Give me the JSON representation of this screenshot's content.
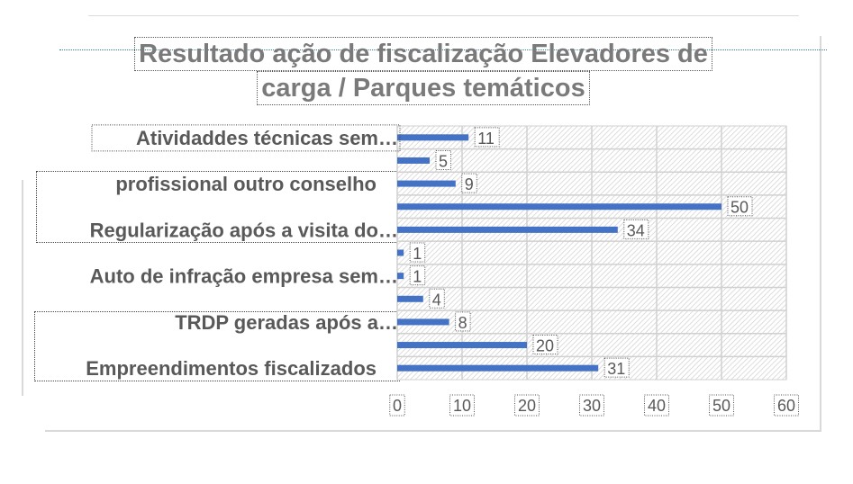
{
  "chart_data": {
    "type": "bar",
    "orientation": "horizontal",
    "title_lines": [
      "Resultado ação de fiscalização Elevadores de",
      "carga / Parques temáticos"
    ],
    "categories": [
      "Atividaddes técnicas sem…",
      "",
      "profissional outro conselho",
      "",
      "Regularização após a visita do…",
      "",
      "Auto de infração empresa sem…",
      "",
      "TRDP geradas após a…",
      "",
      "Empreendimentos fiscalizados"
    ],
    "values": [
      11,
      5,
      9,
      50,
      34,
      1,
      1,
      4,
      8,
      20,
      31
    ],
    "xlim": [
      0,
      60
    ],
    "x_ticks": [
      0,
      10,
      20,
      30,
      40,
      50,
      60
    ],
    "grid": true,
    "bar_color": "#4472c4",
    "label_color": "#595959",
    "title_color": "#7a7a7a"
  }
}
